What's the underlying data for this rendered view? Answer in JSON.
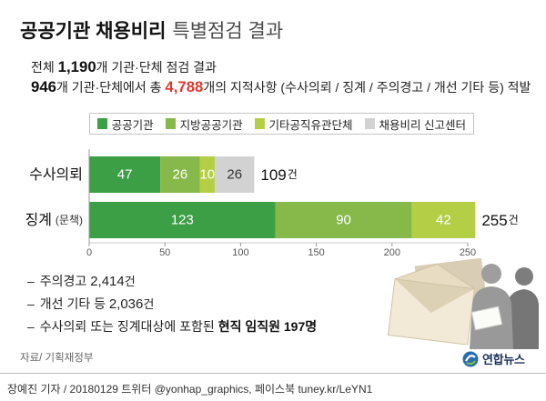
{
  "header": {
    "title_bold": "공공기관 채용비리",
    "title_light": "특별점검 결과"
  },
  "summary": {
    "line1_prefix": "전체 ",
    "line1_count": "1,190",
    "line1_suffix": "개 기관·단체 점검 결과",
    "line2_count": "946",
    "line2_mid": "개 기관·단체에서 총 ",
    "line2_total": "4,788",
    "line2_suffix": "개의 지적사항 (수사의뢰 / 징계 / 주의경고 / 개선 기타 등) 적발"
  },
  "chart_data": {
    "type": "bar",
    "orientation": "horizontal",
    "stacked": true,
    "categories": [
      "수사의뢰",
      "징계"
    ],
    "category_sublabels": [
      "",
      "(문책)"
    ],
    "series": [
      {
        "name": "공공기관",
        "values": [
          47,
          123
        ],
        "color": "#3d9f45"
      },
      {
        "name": "지방공공기관",
        "values": [
          26,
          90
        ],
        "color": "#86b84a"
      },
      {
        "name": "기타공직유관단체",
        "values": [
          10,
          42
        ],
        "color": "#b4cf46"
      },
      {
        "name": "채용비리 신고센터",
        "values": [
          26,
          null
        ],
        "color": "#d2d2d2"
      }
    ],
    "totals": [
      109,
      255
    ],
    "total_unit": "건",
    "xlim": [
      0,
      250
    ],
    "xticks": [
      0,
      50,
      100,
      150,
      200,
      250
    ],
    "legend_position": "top",
    "grid": false
  },
  "notes": {
    "bullet": "–",
    "items": [
      {
        "label": "주의경고 ",
        "value": "2,414",
        "unit": "건"
      },
      {
        "label": "개선 기타 등 ",
        "value": "2,036",
        "unit": "건"
      },
      {
        "label": "수사의뢰 또는 징계대상에 포함된 ",
        "value": "현직 임직원 197",
        "unit": "명"
      }
    ]
  },
  "source": "자료/ 기획재정부",
  "logo": {
    "text": "연합뉴스",
    "icon": "yonhap-logo-icon"
  },
  "illustration": {
    "icon": "envelope-and-people-illustration"
  },
  "footer": "장예진 기자 / 20180129 트위터 @yonhap_graphics, 페이스북 tuney.kr/LeYN1",
  "colors": {
    "highlight": "#e03a2f",
    "axis": "#9a9a9a",
    "axis_light": "#c8c8c8"
  }
}
